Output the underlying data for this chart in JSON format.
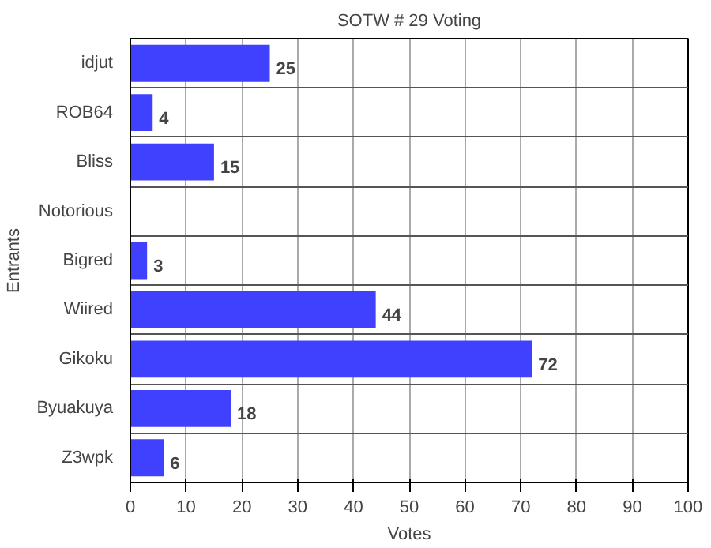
{
  "chart_data": {
    "type": "bar",
    "orientation": "horizontal",
    "title": "SOTW # 29 Voting",
    "xlabel": "Votes",
    "ylabel": "Entrants",
    "categories": [
      "idjut",
      "ROB64",
      "Bliss",
      "Notorious",
      "Bigred",
      "Wiired",
      "Gikoku",
      "Byuakuya",
      "Z3wpk"
    ],
    "values": [
      25,
      4,
      15,
      0,
      3,
      44,
      72,
      18,
      6
    ],
    "value_labels": [
      "25",
      "4",
      "15",
      null,
      "3",
      "44",
      "72",
      "18",
      "6"
    ],
    "color": "#4040ff",
    "xlim": [
      0,
      100
    ],
    "xticks": [
      0,
      10,
      20,
      30,
      40,
      50,
      60,
      70,
      80,
      90,
      100
    ],
    "grid": true
  }
}
